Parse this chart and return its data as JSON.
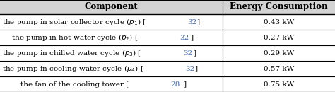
{
  "header": [
    "Component",
    "Energy Consumption"
  ],
  "col1_texts": [
    "the pump in solar collector cycle ($p_1$) [32]",
    "the pump in hot water cycle ($p_2$) [32]",
    "the pump in chilled water cycle ($p_3$) [32]",
    "the pump in cooling water cycle ($p_4$) [32]",
    "the fan of the cooling tower [28]"
  ],
  "col1_parts": [
    [
      "the pump in solar collector cycle ($p_1$) [",
      "32",
      "]"
    ],
    [
      "    the pump in hot water cycle ($p_2$) [",
      "32",
      "]"
    ],
    [
      "the pump in chilled water cycle ($p_3$) [",
      "32",
      "]"
    ],
    [
      "the pump in cooling water cycle ($p_4$) [",
      "32",
      "]"
    ],
    [
      "        the fan of the cooling tower [",
      "28",
      "]"
    ]
  ],
  "col1_indented": [
    false,
    true,
    false,
    false,
    true
  ],
  "energy_values": [
    "0.43 kW",
    "0.27 kW",
    "0.29 kW",
    "0.57 kW",
    "0.75 kW"
  ],
  "bg_color": "#ffffff",
  "header_bg": "#d3d3d3",
  "line_color": "#000000",
  "text_color": "#000000",
  "link_color": "#4169b0",
  "font_size": 7.5,
  "header_font_size": 8.5
}
